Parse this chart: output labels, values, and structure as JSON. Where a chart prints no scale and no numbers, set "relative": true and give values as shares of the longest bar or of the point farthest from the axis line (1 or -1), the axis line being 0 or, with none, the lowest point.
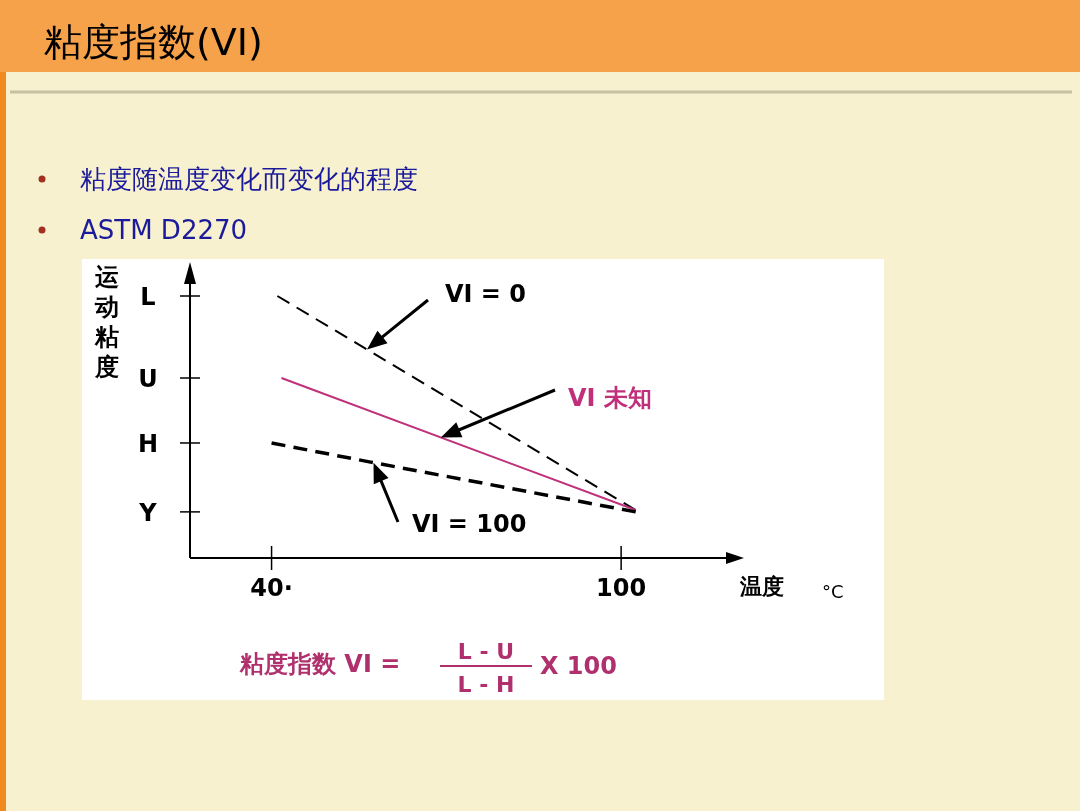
{
  "chart_data": {
    "type": "line",
    "title": "粘度指数(VI)",
    "ylabel": "运动粘度",
    "xlabel": "温度",
    "relative": true,
    "xlim": [
      26,
      118
    ],
    "xticks": [
      {
        "value": 40,
        "label": "40·"
      },
      100
    ],
    "series": [
      {
        "color": "#000000",
        "line_style": "dashed",
        "x": [
          41,
          102.5
        ],
        "values": [
          1,
          0.183
        ]
      },
      {
        "color": "#c0307a",
        "line_style": "solid",
        "x": [
          41.7,
          102.5
        ],
        "values": [
          0.687,
          0.183
        ]
      },
      {
        "color": "#000000",
        "line_style": "dashed",
        "x": [
          40,
          57,
          102.5
        ],
        "values": [
          0.439,
          0.366,
          0.176
        ]
      }
    ],
    "annotations": [
      "粘度随温度变化而变化的程度",
      "ASTM D2270",
      "L",
      "U",
      "H",
      "Y",
      "VI = 0",
      "VI 未知",
      "VI = 100",
      "°C",
      "粘度指数 VI =",
      "L - U",
      "L - H",
      "X 100"
    ]
  }
}
